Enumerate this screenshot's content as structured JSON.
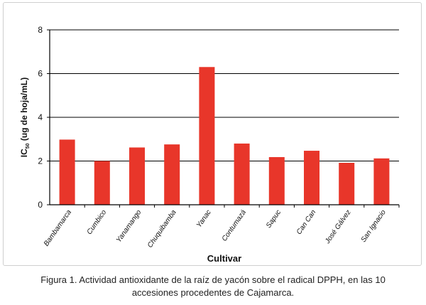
{
  "chart_data": {
    "type": "bar",
    "categories": [
      "Bambamarca",
      "Cumbico",
      "Yanamango",
      "Chuquibamba",
      "Yanac",
      "Contumazá",
      "Sapuc",
      "Can Can",
      "José Gálvez",
      "San Ignacio"
    ],
    "values": [
      2.98,
      2.0,
      2.62,
      2.76,
      6.3,
      2.8,
      2.18,
      2.47,
      1.92,
      2.12
    ],
    "xlabel": "Cultivar",
    "ylabel_main": "IC",
    "ylabel_sub": "50",
    "ylabel_rest": " (ug de hoja/mL)",
    "ylim": [
      0,
      8
    ],
    "yticks": [
      "0",
      "2",
      "4",
      "6",
      "8"
    ],
    "grid": true,
    "bar_color": "#e8362a"
  },
  "caption": {
    "line1": "Figura 1. Actividad antioxidante de la raíz de yacón sobre el radical DPPH, en las 10",
    "line2": "accesiones procedentes de Cajamarca."
  }
}
